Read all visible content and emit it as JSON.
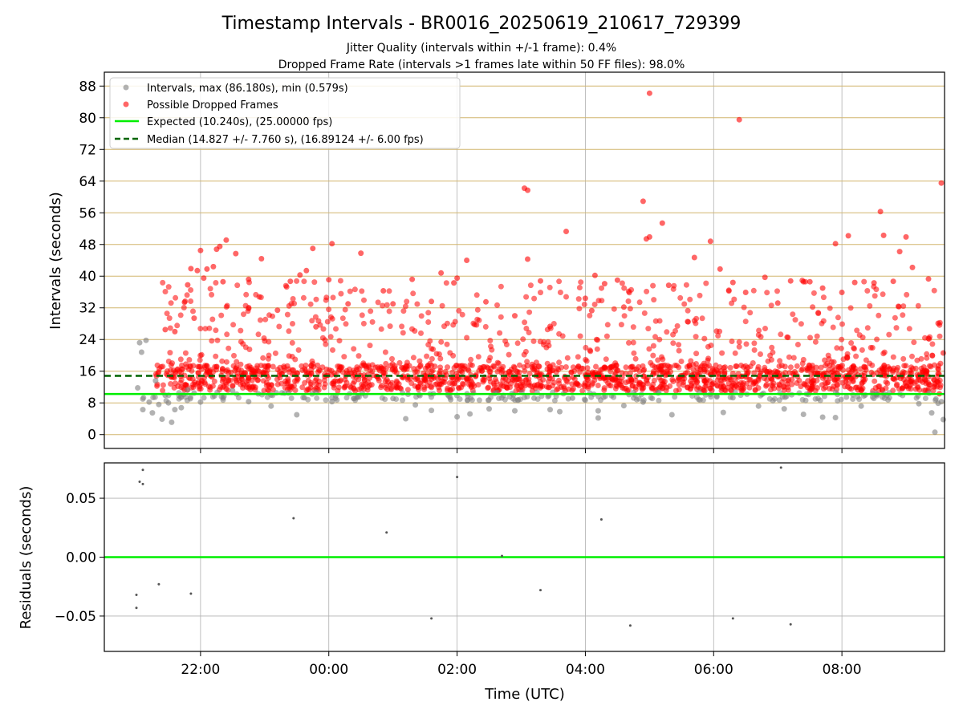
{
  "chart_data": [
    {
      "type": "scatter",
      "title": "Timestamp Intervals - BR0016_20250619_210617_729399",
      "subtitle_lines": [
        "Jitter Quality (intervals within +/-1 frame): 0.4%",
        "Dropped Frame Rate (intervals >1 frames late within 50 FF files): 98.0%"
      ],
      "xlabel": "",
      "ylabel": "Intervals (seconds)",
      "x_unit": "hours_utc_from_midnight_of_2025-06-19",
      "xlim": [
        20.5,
        33.6
      ],
      "ylim": [
        -3.5,
        91.5
      ],
      "yticks": [
        0,
        8,
        16,
        24,
        32,
        40,
        48,
        56,
        64,
        72,
        80,
        88
      ],
      "grid": "horizontal",
      "legend_position": "top-left",
      "legend": [
        "Intervals, max (86.180s), min (0.579s)",
        "Possible Dropped Frames",
        "Expected (10.240s), (25.00000 fps)",
        "Median (14.827 +/- 7.760 s), (16.89124 +/- 6.00 fps)"
      ],
      "expected_interval": 10.24,
      "median_interval": 14.827,
      "series": [
        {
          "name": "Possible Dropped Frames",
          "color": "#ff0000",
          "points": [
            [
              21.45,
              26.5
            ],
            [
              21.6,
              26.0
            ],
            [
              21.75,
              33.4
            ],
            [
              21.8,
              37.8
            ],
            [
              21.85,
              41.9
            ],
            [
              21.9,
              29.4
            ],
            [
              21.95,
              41.4
            ],
            [
              22.0,
              46.5
            ],
            [
              22.05,
              39.5
            ],
            [
              22.1,
              41.8
            ],
            [
              22.2,
              42.4
            ],
            [
              22.25,
              46.8
            ],
            [
              22.3,
              47.5
            ],
            [
              22.35,
              38.6
            ],
            [
              22.4,
              49.1
            ],
            [
              22.55,
              45.7
            ],
            [
              22.75,
              39.2
            ],
            [
              22.95,
              44.4
            ],
            [
              23.2,
              31.4
            ],
            [
              23.4,
              38.7
            ],
            [
              23.55,
              40.3
            ],
            [
              23.65,
              41.4
            ],
            [
              23.8,
              27.2
            ],
            [
              24.0,
              39.1
            ],
            [
              23.75,
              47.0
            ],
            [
              24.05,
              48.2
            ],
            [
              24.3,
              33.0
            ],
            [
              24.5,
              45.8
            ],
            [
              24.85,
              36.3
            ],
            [
              25.0,
              33.0
            ],
            [
              25.3,
              39.2
            ],
            [
              25.6,
              33.6
            ],
            [
              25.75,
              40.8
            ],
            [
              25.95,
              38.3
            ],
            [
              26.0,
              39.5
            ],
            [
              26.15,
              44.0
            ],
            [
              26.45,
              33.5
            ],
            [
              26.9,
              30.0
            ],
            [
              27.05,
              62.2
            ],
            [
              27.1,
              61.7
            ],
            [
              27.1,
              44.3
            ],
            [
              27.3,
              38.8
            ],
            [
              27.45,
              27.3
            ],
            [
              27.7,
              51.3
            ],
            [
              28.0,
              34.4
            ],
            [
              28.1,
              31.3
            ],
            [
              28.15,
              40.2
            ],
            [
              28.3,
              38.1
            ],
            [
              28.5,
              39.0
            ],
            [
              28.6,
              32.2
            ],
            [
              28.9,
              58.9
            ],
            [
              28.95,
              49.4
            ],
            [
              29.0,
              49.9
            ],
            [
              29.0,
              86.2
            ],
            [
              29.2,
              53.4
            ],
            [
              29.3,
              37.7
            ],
            [
              29.7,
              44.7
            ],
            [
              29.95,
              48.8
            ],
            [
              30.1,
              41.8
            ],
            [
              30.3,
              38.4
            ],
            [
              30.4,
              79.5
            ],
            [
              30.5,
              35.9
            ],
            [
              30.8,
              39.7
            ],
            [
              31.0,
              33.2
            ],
            [
              31.2,
              38.8
            ],
            [
              31.4,
              38.6
            ],
            [
              31.5,
              38.6
            ],
            [
              31.7,
              37.0
            ],
            [
              31.9,
              48.2
            ],
            [
              32.0,
              35.9
            ],
            [
              32.1,
              50.2
            ],
            [
              32.2,
              38.4
            ],
            [
              32.5,
              38.3
            ],
            [
              32.6,
              56.3
            ],
            [
              32.65,
              50.3
            ],
            [
              32.8,
              38.7
            ],
            [
              32.9,
              46.2
            ],
            [
              33.0,
              49.9
            ],
            [
              33.1,
              42.2
            ],
            [
              33.35,
              39.3
            ],
            [
              33.5,
              28.1
            ],
            [
              33.55,
              63.5
            ],
            [
              33.5,
              15.4
            ],
            [
              33.45,
              12.8
            ],
            [
              33.52,
              10.3
            ],
            [
              33.58,
              20.6
            ]
          ]
        },
        {
          "name": "Intervals",
          "color": "#7f7f7f",
          "points": [
            [
              21.02,
              11.8
            ],
            [
              21.05,
              23.2
            ],
            [
              21.08,
              20.8
            ],
            [
              21.1,
              6.3
            ],
            [
              21.15,
              23.8
            ],
            [
              21.2,
              8.2
            ],
            [
              21.25,
              5.5
            ],
            [
              21.3,
              13.6
            ],
            [
              21.35,
              7.6
            ],
            [
              21.4,
              3.9
            ],
            [
              21.45,
              9.9
            ],
            [
              21.5,
              8.0
            ],
            [
              21.55,
              3.1
            ],
            [
              21.6,
              6.3
            ],
            [
              21.7,
              6.8
            ],
            [
              21.8,
              11.3
            ],
            [
              21.9,
              10.5
            ],
            [
              22.0,
              8.2
            ],
            [
              22.5,
              11.1
            ],
            [
              22.75,
              8.3
            ],
            [
              22.9,
              10.3
            ],
            [
              23.1,
              7.2
            ],
            [
              23.5,
              5.0
            ],
            [
              23.8,
              10.7
            ],
            [
              24.05,
              8.3
            ],
            [
              24.4,
              9.1
            ],
            [
              25.0,
              9.1
            ],
            [
              25.2,
              4.0
            ],
            [
              25.35,
              7.5
            ],
            [
              25.6,
              6.1
            ],
            [
              25.9,
              8.8
            ],
            [
              26.0,
              4.5
            ],
            [
              26.2,
              5.2
            ],
            [
              26.5,
              6.5
            ],
            [
              26.9,
              6.0
            ],
            [
              27.2,
              9.2
            ],
            [
              27.45,
              6.3
            ],
            [
              27.6,
              5.8
            ],
            [
              27.8,
              9.2
            ],
            [
              28.0,
              8.7
            ],
            [
              28.2,
              6.0
            ],
            [
              28.2,
              4.2
            ],
            [
              28.6,
              7.3
            ],
            [
              28.9,
              8.2
            ],
            [
              29.35,
              5.0
            ],
            [
              30.05,
              9.5
            ],
            [
              30.15,
              5.6
            ],
            [
              30.3,
              9.3
            ],
            [
              30.7,
              7.2
            ],
            [
              31.1,
              6.5
            ],
            [
              31.4,
              5.1
            ],
            [
              31.7,
              4.4
            ],
            [
              31.9,
              4.3
            ],
            [
              32.3,
              7.2
            ],
            [
              32.7,
              9.9
            ],
            [
              33.2,
              7.8
            ],
            [
              33.4,
              5.5
            ],
            [
              33.5,
              7.9
            ],
            [
              33.55,
              8.3
            ],
            [
              33.58,
              3.8
            ],
            [
              33.45,
              0.6
            ]
          ]
        }
      ]
    },
    {
      "type": "scatter",
      "title": "",
      "xlabel": "Time (UTC)",
      "ylabel": "Residuals (seconds)",
      "x_unit": "hours_utc_from_midnight_of_2025-06-19",
      "xlim": [
        20.5,
        33.6
      ],
      "ylim": [
        -0.08,
        0.08
      ],
      "yticks": [
        -0.05,
        0.0,
        0.05
      ],
      "ytick_labels": [
        "−0.05",
        "0.00",
        "0.05"
      ],
      "xticks": [
        22,
        24,
        26,
        28,
        30,
        32
      ],
      "xtick_labels": [
        "22:00",
        "00:00",
        "02:00",
        "04:00",
        "06:00",
        "08:00"
      ],
      "grid": "both",
      "zero_line_color": "#00ee00",
      "series": [
        {
          "name": "",
          "color": "#555555",
          "points": [
            [
              21.1,
              0.074
            ],
            [
              21.05,
              0.064
            ],
            [
              21.1,
              0.062
            ],
            [
              21.0,
              -0.032
            ],
            [
              21.0,
              -0.043
            ],
            [
              21.35,
              -0.023
            ],
            [
              21.85,
              -0.031
            ],
            [
              23.45,
              0.033
            ],
            [
              24.9,
              0.021
            ],
            [
              25.6,
              -0.052
            ],
            [
              26.0,
              0.068
            ],
            [
              26.7,
              0.001
            ],
            [
              27.3,
              -0.028
            ],
            [
              28.25,
              0.032
            ],
            [
              28.7,
              -0.058
            ],
            [
              30.3,
              -0.052
            ],
            [
              31.05,
              0.076
            ],
            [
              31.2,
              -0.057
            ]
          ]
        }
      ]
    }
  ]
}
